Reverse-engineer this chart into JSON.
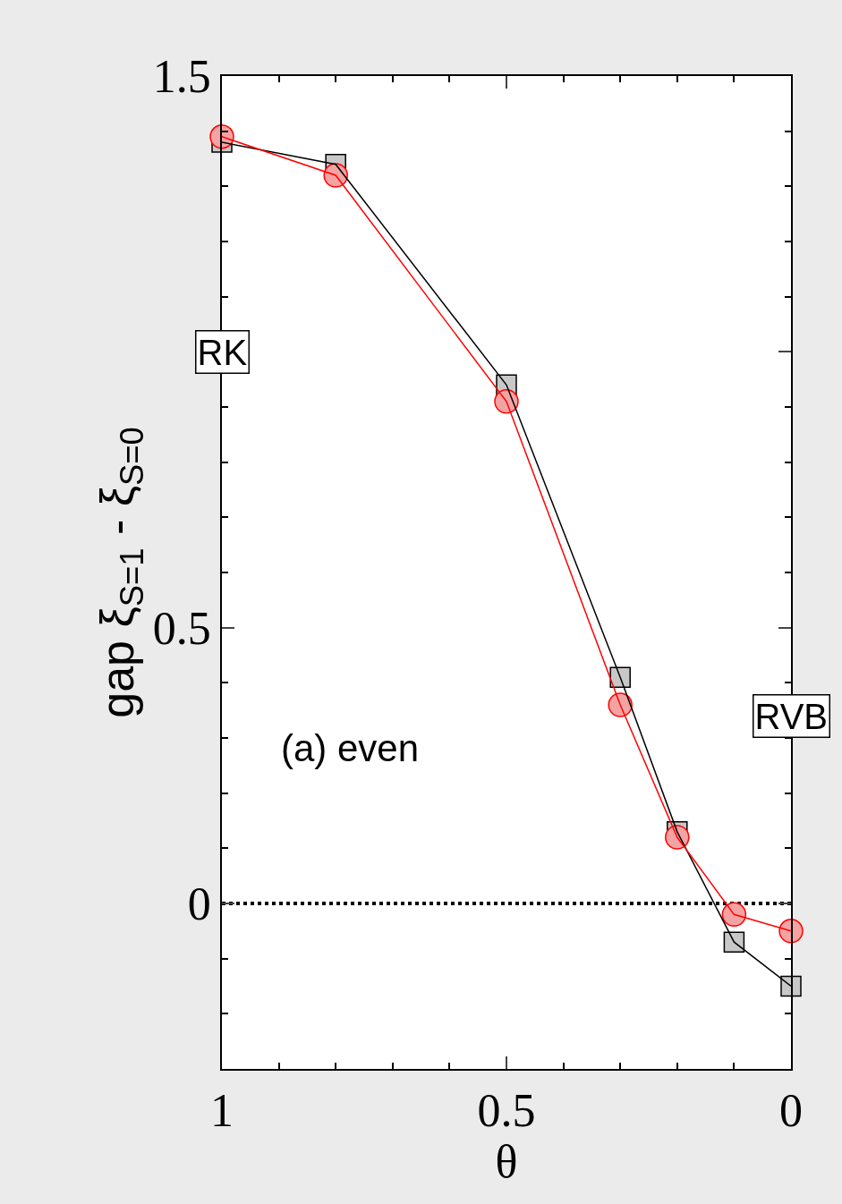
{
  "chart_data": {
    "type": "line",
    "xlabel": "θ",
    "ylabel": "gap ξ$_{S=1}$ - ξ$_{S=0}$",
    "x": [
      1,
      0.8,
      0.5,
      0.3,
      0.2,
      0.1,
      0
    ],
    "series": [
      {
        "color": "#000000",
        "marker": "square",
        "values": [
          1.38,
          1.34,
          0.94,
          0.41,
          0.13,
          -0.07,
          -0.15
        ]
      },
      {
        "color": "#ff0000",
        "marker": "circle",
        "values": [
          1.39,
          1.32,
          0.91,
          0.36,
          0.12,
          -0.02,
          -0.05
        ]
      }
    ],
    "xlim": [
      1,
      0
    ],
    "xticks": [
      1,
      0.5,
      0
    ],
    "ylim": [
      -0.3,
      1.5
    ],
    "yticks": [
      0,
      0.5,
      {
        "value": 1,
        "label": null
      },
      1.5
    ],
    "ref_lines": [
      {
        "axis": "y",
        "value": 0,
        "color": "#000000",
        "line_style": "dotted"
      }
    ],
    "annotations": [
      "RK",
      "RVB",
      "(a) even"
    ],
    "grid": false
  }
}
